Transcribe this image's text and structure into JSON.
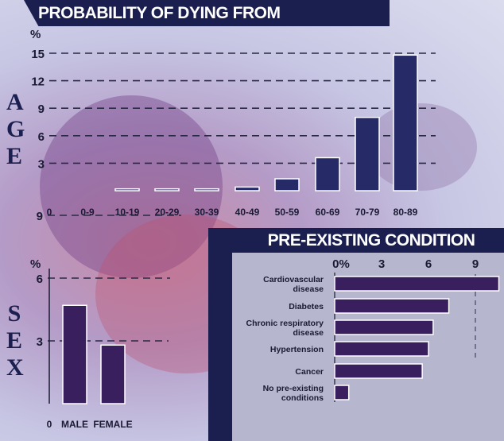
{
  "chart_data": [
    {
      "type": "bar",
      "title": "PROBABILITY OF DYING FROM CORONAVIRUS",
      "side_label": "AGE",
      "ylabel": "%",
      "ylim": [
        0,
        15
      ],
      "yticks": [
        3,
        6,
        9,
        12,
        15
      ],
      "x_origin_label": "0",
      "categories": [
        "0-9",
        "10-19",
        "20-29",
        "30-39",
        "40-49",
        "50-59",
        "60-69",
        "70-79",
        "80-89"
      ],
      "values": [
        0,
        0.2,
        0.2,
        0.2,
        0.4,
        1.3,
        3.6,
        8.0,
        14.8
      ],
      "grid": true,
      "bar_color": "#262a66"
    },
    {
      "type": "bar",
      "side_label": "SEX",
      "ylabel": "%",
      "yticks": [
        3,
        6,
        9
      ],
      "ylim": [
        0,
        10
      ],
      "x_origin_label": "0",
      "categories": [
        "MALE",
        "FEMALE"
      ],
      "values": [
        4.7,
        2.8
      ],
      "grid": true,
      "bar_color": "#3a1f5e"
    },
    {
      "type": "bar",
      "orientation": "horizontal",
      "title": "PRE-EXISTING CONDITION",
      "xticks": [
        "0%",
        "3",
        "6",
        "9"
      ],
      "xlim": [
        0,
        10.5
      ],
      "categories": [
        "Cardiovascular disease",
        "Diabetes",
        "Chronic respiratory disease",
        "Hypertension",
        "Cancer",
        "No pre-existing conditions"
      ],
      "values": [
        10.5,
        7.3,
        6.3,
        6.0,
        5.6,
        0.9
      ],
      "bar_color": "#3a1f5e"
    }
  ]
}
